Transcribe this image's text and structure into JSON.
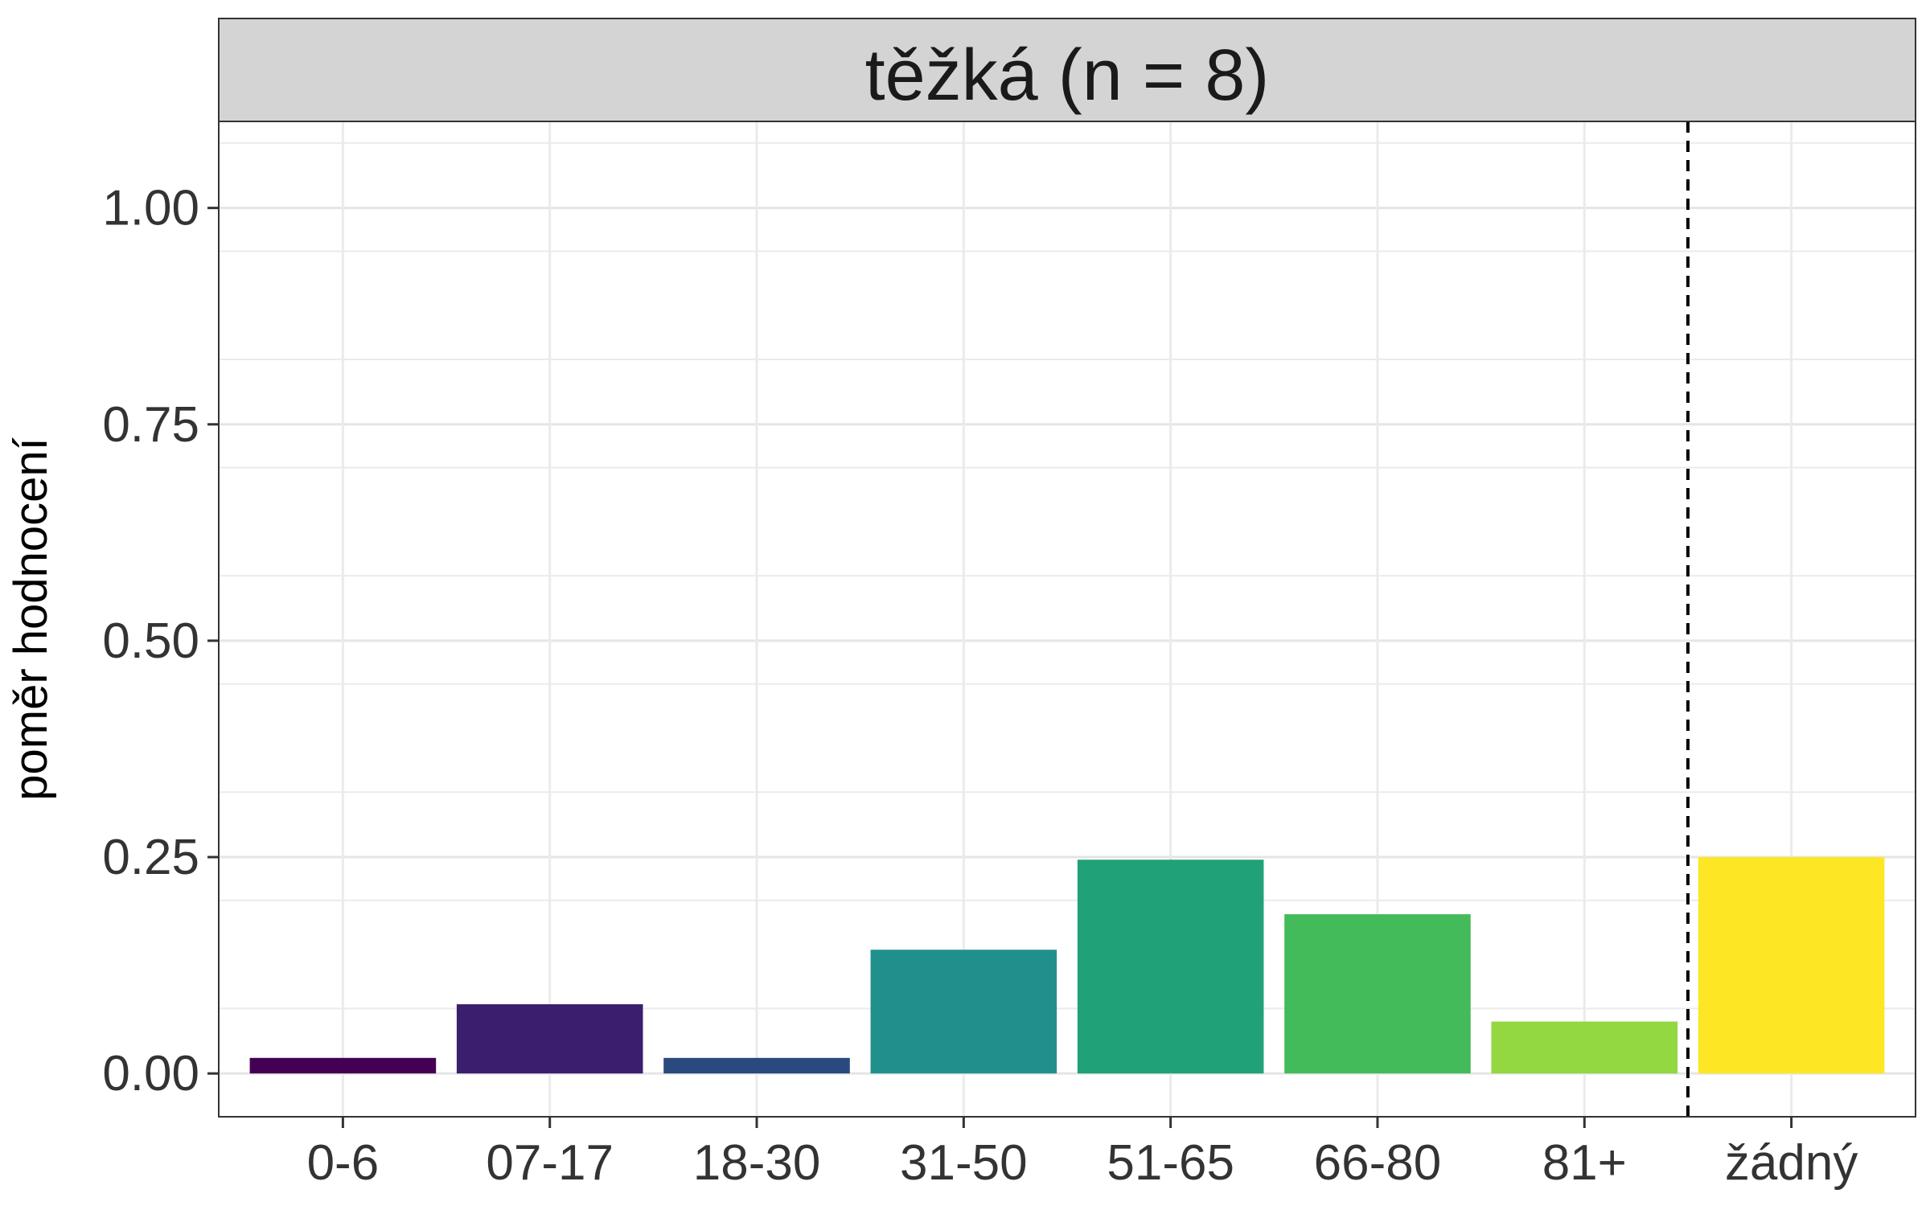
{
  "chart_data": {
    "type": "bar",
    "title": "",
    "panel_title": "těžká (n = 8)",
    "xlabel": "",
    "ylabel": "poměr hodnocení",
    "categories": [
      "0-6",
      "07-17",
      "18-30",
      "31-50",
      "51-65",
      "66-80",
      "81+",
      "žádný"
    ],
    "values": [
      0.018,
      0.08,
      0.018,
      0.143,
      0.247,
      0.184,
      0.06,
      0.25
    ],
    "colors": [
      "#440154",
      "#3b1f6e",
      "#2a4a7f",
      "#21908d",
      "#21a178",
      "#44bb5a",
      "#93d741",
      "#fde725"
    ],
    "ylim": [
      -0.05,
      1.1
    ],
    "yticks": [
      0,
      0.25,
      0.5,
      0.75,
      1.0
    ],
    "ytick_labels": [
      "0.00",
      "0.25",
      "0.50",
      "0.75",
      "1.00"
    ],
    "separator_between": [
      6,
      7
    ],
    "grid": true,
    "legend": "none"
  }
}
